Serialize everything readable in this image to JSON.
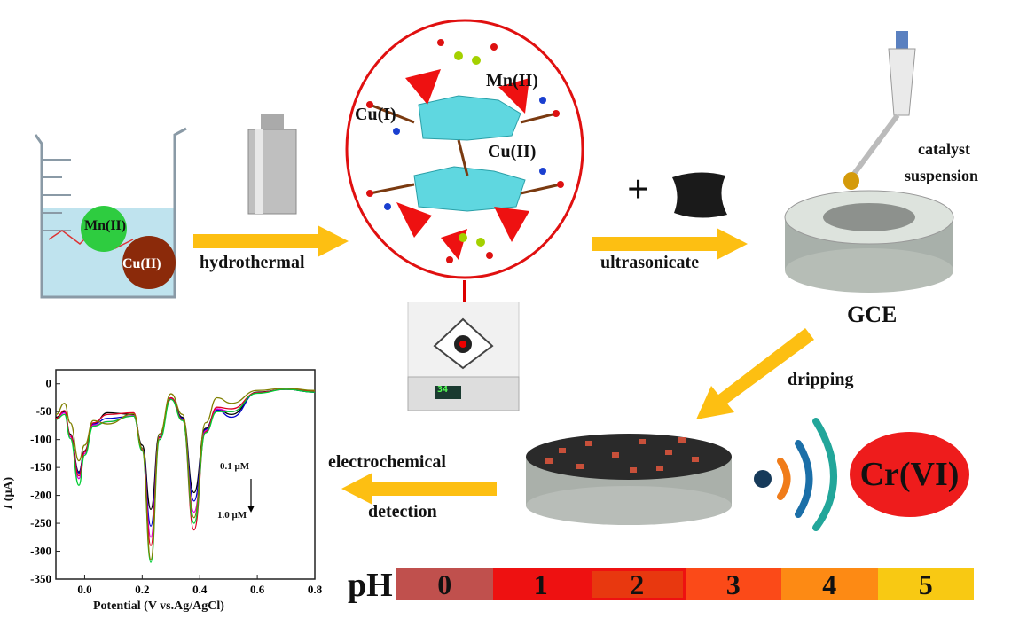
{
  "beaker": {
    "ion1": "Mn(II)",
    "ion2": "Cu(II)"
  },
  "steps": {
    "hydrothermal": "hydrothermal",
    "ultrasonicate": "ultrasonicate",
    "dripping": "dripping",
    "detection_line1": "electrochemical",
    "detection_line2": "detection"
  },
  "structure": {
    "label_cu1": "Cu(I)",
    "label_mn": "Mn(II)",
    "label_cu2": "Cu(II)"
  },
  "instrument_display": "34",
  "plus": "+",
  "pipette": {
    "label_line1": "catalyst",
    "label_line2": "suspension"
  },
  "electrode": {
    "label": "GCE"
  },
  "analyte": {
    "label": "Cr(VI)",
    "color": "#ee1c1c"
  },
  "arrow_color": "#fdbf12",
  "ph_scale": {
    "label": "pH",
    "cells": [
      {
        "value": "0",
        "color": "#c0504d"
      },
      {
        "value": "1",
        "color": "#ee1111"
      },
      {
        "value": "2",
        "color": "#e8380f"
      },
      {
        "value": "3",
        "color": "#fb4a18"
      },
      {
        "value": "4",
        "color": "#fd8a14"
      },
      {
        "value": "5",
        "color": "#f8c913"
      }
    ]
  },
  "chart_data": {
    "type": "line",
    "xlabel": "Potential (V vs.Ag/AgCl)",
    "ylabel_italic": "I",
    "ylabel_unit": " (μA)",
    "xlim": [
      -0.1,
      0.8
    ],
    "ylim": [
      -350,
      25
    ],
    "xticks": [
      "0.0",
      "0.2",
      "0.4",
      "0.6",
      "0.8"
    ],
    "xtick_values": [
      0,
      0.2,
      0.4,
      0.6,
      0.8
    ],
    "yticks": [
      "0",
      "-50",
      "-100",
      "-150",
      "-200",
      "-250",
      "-300",
      "-350"
    ],
    "ytick_values": [
      0,
      -50,
      -100,
      -150,
      -200,
      -250,
      -300,
      -350
    ],
    "annotation_top": "0.1 μM",
    "annotation_bottom": "1.0 μM",
    "x": [
      -0.1,
      -0.07,
      -0.05,
      -0.02,
      0.0,
      0.03,
      0.08,
      0.17,
      0.2,
      0.23,
      0.26,
      0.3,
      0.34,
      0.38,
      0.42,
      0.46,
      0.51,
      0.6,
      0.7,
      0.8
    ],
    "series": [
      {
        "color": "#000000",
        "values": [
          -60,
          -50,
          -90,
          -158,
          -120,
          -72,
          -52,
          -55,
          -110,
          -225,
          -90,
          -25,
          -60,
          -195,
          -80,
          -45,
          -55,
          -15,
          -10,
          -15
        ]
      },
      {
        "color": "#0000cc",
        "values": [
          -62,
          -52,
          -92,
          -160,
          -122,
          -72,
          -62,
          -58,
          -115,
          -255,
          -95,
          -26,
          -62,
          -210,
          -82,
          -47,
          -60,
          -16,
          -10,
          -15
        ]
      },
      {
        "color": "#dd00dd",
        "values": [
          -63,
          -52,
          -95,
          -170,
          -125,
          -74,
          -68,
          -57,
          -118,
          -275,
          -97,
          -27,
          -64,
          -230,
          -84,
          -45,
          -50,
          -16,
          -10,
          -14
        ]
      },
      {
        "color": "#dd0022",
        "values": [
          -62,
          -48,
          -92,
          -165,
          -122,
          -70,
          -55,
          -52,
          -118,
          -290,
          -96,
          -25,
          -64,
          -262,
          -86,
          -42,
          -45,
          -16,
          -10,
          -13
        ]
      },
      {
        "color": "#00cc33",
        "values": [
          -64,
          -55,
          -98,
          -182,
          -128,
          -76,
          -68,
          -58,
          -120,
          -320,
          -100,
          -28,
          -66,
          -250,
          -88,
          -50,
          -50,
          -17,
          -10,
          -15
        ]
      },
      {
        "color": "#808000",
        "values": [
          -55,
          -35,
          -70,
          -138,
          -110,
          -66,
          -72,
          -54,
          -115,
          -315,
          -90,
          -18,
          -55,
          -240,
          -70,
          -25,
          -35,
          -12,
          -8,
          -12
        ]
      }
    ]
  }
}
